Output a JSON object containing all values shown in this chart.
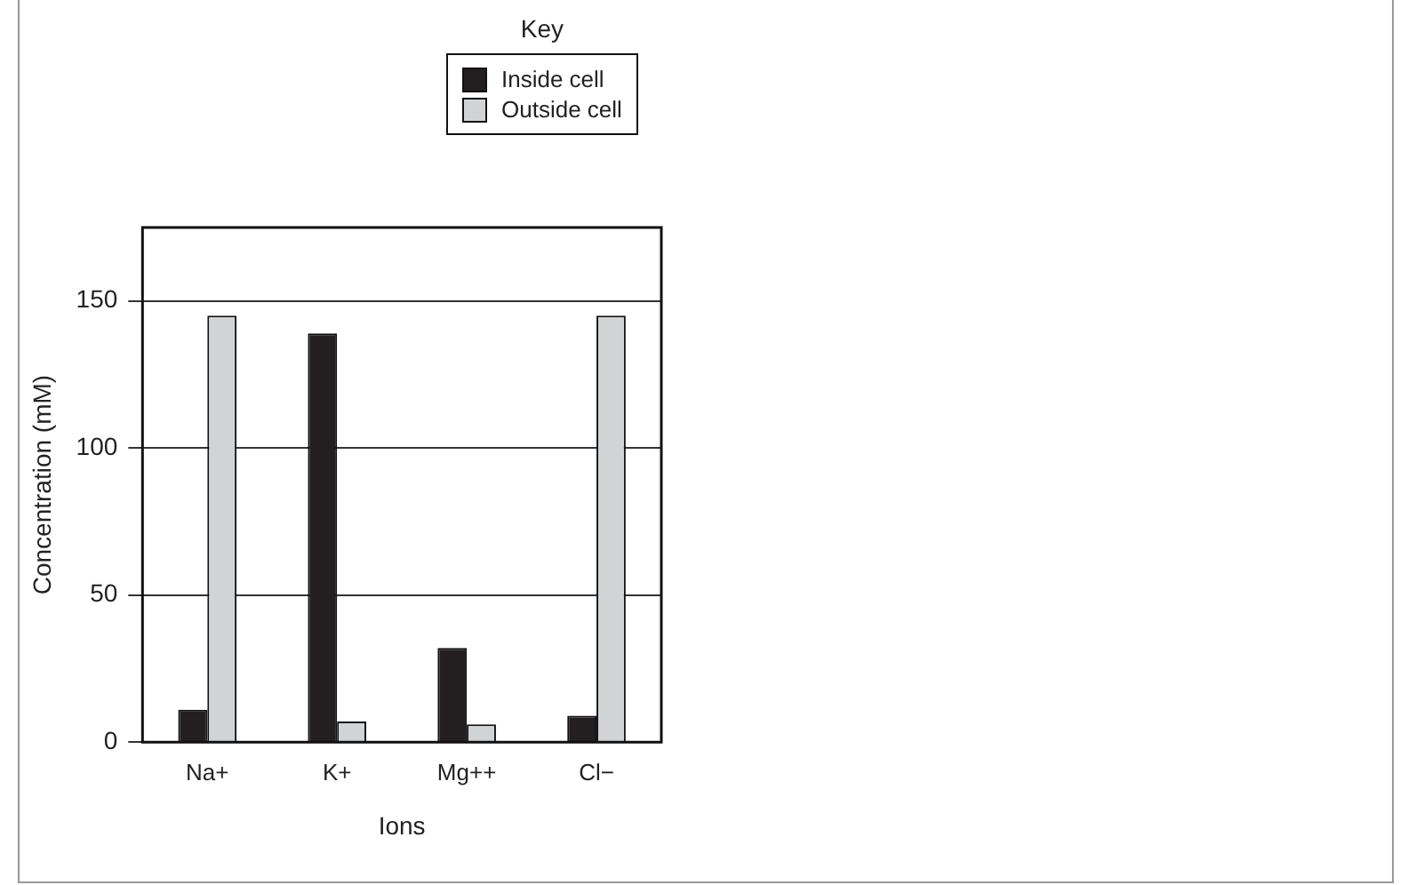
{
  "chart_data": {
    "type": "bar",
    "xlabel": "Ions",
    "ylabel": "Concentration (mM)",
    "legend_title": "Key",
    "categories": [
      "Na+",
      "K+",
      "Mg++",
      "Cl−"
    ],
    "series": [
      {
        "name": "Inside cell",
        "color": "#231f20",
        "values": [
          11,
          139,
          32,
          9
        ]
      },
      {
        "name": "Outside cell",
        "color": "#d1d3d4",
        "values": [
          145,
          7,
          6,
          145
        ]
      }
    ],
    "ylim": [
      0,
      175
    ],
    "yticks": [
      0,
      50,
      100,
      150
    ],
    "grid": "y",
    "legend": "top right"
  }
}
